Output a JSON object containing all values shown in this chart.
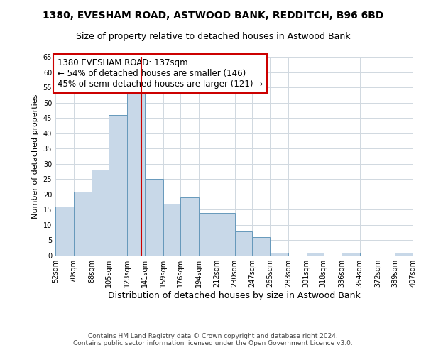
{
  "title": "1380, EVESHAM ROAD, ASTWOOD BANK, REDDITCH, B96 6BD",
  "subtitle": "Size of property relative to detached houses in Astwood Bank",
  "xlabel": "Distribution of detached houses by size in Astwood Bank",
  "ylabel": "Number of detached properties",
  "bin_labels": [
    "52sqm",
    "70sqm",
    "88sqm",
    "105sqm",
    "123sqm",
    "141sqm",
    "159sqm",
    "176sqm",
    "194sqm",
    "212sqm",
    "230sqm",
    "247sqm",
    "265sqm",
    "283sqm",
    "301sqm",
    "318sqm",
    "336sqm",
    "354sqm",
    "372sqm",
    "389sqm",
    "407sqm"
  ],
  "bin_edges": [
    52,
    70,
    88,
    105,
    123,
    141,
    159,
    176,
    194,
    212,
    230,
    247,
    265,
    283,
    301,
    318,
    336,
    354,
    372,
    389,
    407
  ],
  "values": [
    16,
    21,
    28,
    46,
    54,
    25,
    17,
    19,
    14,
    14,
    8,
    6,
    1,
    0,
    1,
    0,
    1,
    0,
    0,
    1
  ],
  "bar_color": "#c8d8e8",
  "bar_edge_color": "#6699bb",
  "vline_x": 137,
  "vline_color": "#cc0000",
  "annotation_text": "1380 EVESHAM ROAD: 137sqm\n← 54% of detached houses are smaller (146)\n45% of semi-detached houses are larger (121) →",
  "annotation_box_color": "#ffffff",
  "annotation_box_edge_color": "#cc0000",
  "ylim": [
    0,
    65
  ],
  "yticks": [
    0,
    5,
    10,
    15,
    20,
    25,
    30,
    35,
    40,
    45,
    50,
    55,
    60,
    65
  ],
  "footer_line1": "Contains HM Land Registry data © Crown copyright and database right 2024.",
  "footer_line2": "Contains public sector information licensed under the Open Government Licence v3.0.",
  "background_color": "#ffffff",
  "grid_color": "#d0d8e0",
  "title_fontsize": 10,
  "subtitle_fontsize": 9,
  "xlabel_fontsize": 9,
  "ylabel_fontsize": 8,
  "tick_fontsize": 7,
  "annotation_fontsize": 8.5,
  "footer_fontsize": 6.5
}
